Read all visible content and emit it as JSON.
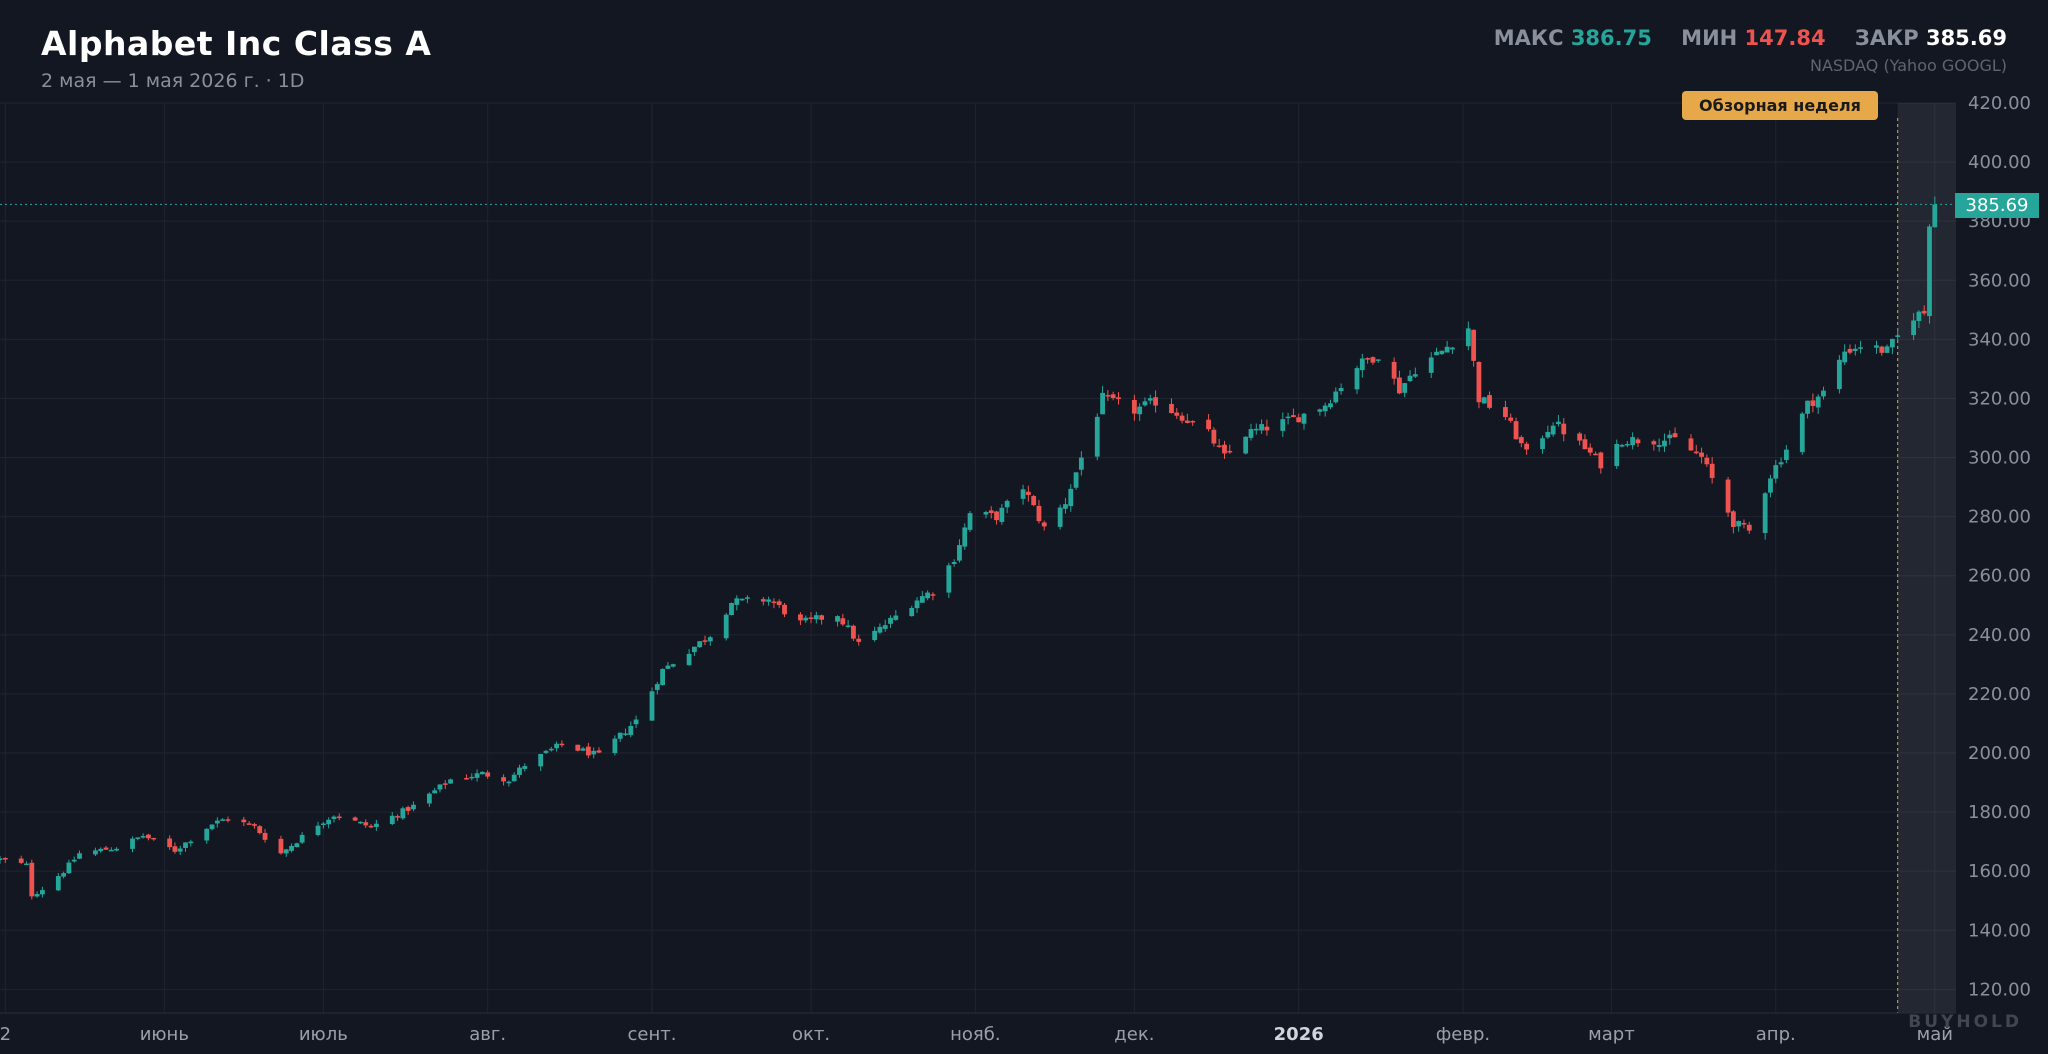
{
  "header": {
    "title": "Alphabet Inc Class A",
    "subtitle": "2 мая — 1 мая 2026 г. · 1D",
    "source": "NASDAQ (Yahoo GOOGL)"
  },
  "stats": {
    "max_label": "МАКС",
    "max_value": "386.75",
    "min_label": "МИН",
    "min_value": "147.84",
    "close_label": "ЗАКР",
    "close_value": "385.69"
  },
  "badge": {
    "label": "Обзорная неделя"
  },
  "last_price_label": "385.69",
  "watermark": "BUYHOLD",
  "colors": {
    "up": "#26a69a",
    "down": "#ef5350",
    "background": "#131722",
    "badge": "#e6a848"
  },
  "chart_data": {
    "type": "candlestick",
    "title": "Alphabet Inc Class A",
    "interval": "1D",
    "ylim": [
      112,
      420
    ],
    "y_ticks": [
      120,
      140,
      160,
      180,
      200,
      220,
      240,
      260,
      280,
      300,
      320,
      340,
      360,
      380,
      400,
      420
    ],
    "y_tick_labels": [
      "120.00",
      "140.00",
      "160.00",
      "180.00",
      "200.00",
      "220.00",
      "240.00",
      "260.00",
      "280.00",
      "300.00",
      "320.00",
      "340.00",
      "360.00",
      "380.00",
      "400.00",
      "420.00"
    ],
    "x_range": [
      "2025-05-01",
      "2026-05-05"
    ],
    "x_ticks": [
      {
        "date": "2025-05-02",
        "label": "2",
        "bold": false
      },
      {
        "date": "2025-06-01",
        "label": "июнь",
        "bold": false
      },
      {
        "date": "2025-07-01",
        "label": "июль",
        "bold": false
      },
      {
        "date": "2025-08-01",
        "label": "авг.",
        "bold": false
      },
      {
        "date": "2025-09-01",
        "label": "сент.",
        "bold": false
      },
      {
        "date": "2025-10-01",
        "label": "окт.",
        "bold": false
      },
      {
        "date": "2025-11-01",
        "label": "нояб.",
        "bold": false
      },
      {
        "date": "2025-12-01",
        "label": "дек.",
        "bold": false
      },
      {
        "date": "2026-01-01",
        "label": "2026",
        "bold": true
      },
      {
        "date": "2026-02-01",
        "label": "февр.",
        "bold": false
      },
      {
        "date": "2026-03-01",
        "label": "март",
        "bold": false
      },
      {
        "date": "2026-04-01",
        "label": "апр.",
        "bold": false
      },
      {
        "date": "2026-05-01",
        "label": "май",
        "bold": false
      }
    ],
    "max": 386.75,
    "min": 147.84,
    "last_close": 385.69,
    "review_week_start": "2026-04-24",
    "close_waypoints": [
      [
        "2025-05-01",
        164
      ],
      [
        "2025-05-06",
        162
      ],
      [
        "2025-05-07",
        152
      ],
      [
        "2025-05-09",
        154
      ],
      [
        "2025-05-13",
        160
      ],
      [
        "2025-05-16",
        166
      ],
      [
        "2025-05-23",
        168
      ],
      [
        "2025-05-28",
        172
      ],
      [
        "2025-06-03",
        167
      ],
      [
        "2025-06-10",
        176
      ],
      [
        "2025-06-13",
        178
      ],
      [
        "2025-06-18",
        175
      ],
      [
        "2025-06-23",
        166
      ],
      [
        "2025-06-30",
        176
      ],
      [
        "2025-07-03",
        179
      ],
      [
        "2025-07-10",
        175
      ],
      [
        "2025-07-18",
        182
      ],
      [
        "2025-07-25",
        191
      ],
      [
        "2025-07-31",
        193
      ],
      [
        "2025-08-05",
        191
      ],
      [
        "2025-08-08",
        196
      ],
      [
        "2025-08-15",
        203
      ],
      [
        "2025-08-22",
        199
      ],
      [
        "2025-08-29",
        211
      ],
      [
        "2025-09-03",
        228
      ],
      [
        "2025-09-12",
        240
      ],
      [
        "2025-09-16",
        251
      ],
      [
        "2025-09-23",
        252
      ],
      [
        "2025-09-29",
        244
      ],
      [
        "2025-10-06",
        247
      ],
      [
        "2025-10-10",
        237
      ],
      [
        "2025-10-14",
        242
      ],
      [
        "2025-10-21",
        252
      ],
      [
        "2025-10-24",
        255
      ],
      [
        "2025-10-28",
        266
      ],
      [
        "2025-10-31",
        281
      ],
      [
        "2025-11-05",
        280
      ],
      [
        "2025-11-10",
        290
      ],
      [
        "2025-11-14",
        276
      ],
      [
        "2025-11-18",
        285
      ],
      [
        "2025-11-21",
        300
      ],
      [
        "2025-11-25",
        320
      ],
      [
        "2025-12-01",
        316
      ],
      [
        "2025-12-05",
        319
      ],
      [
        "2025-12-10",
        314
      ],
      [
        "2025-12-15",
        308
      ],
      [
        "2025-12-18",
        300
      ],
      [
        "2025-12-22",
        308
      ],
      [
        "2025-12-31",
        313
      ],
      [
        "2026-01-06",
        318
      ],
      [
        "2026-01-12",
        331
      ],
      [
        "2026-01-16",
        335
      ],
      [
        "2026-01-20",
        323
      ],
      [
        "2026-01-23",
        330
      ],
      [
        "2026-01-28",
        336
      ],
      [
        "2026-02-02",
        344
      ],
      [
        "2026-02-04",
        320
      ],
      [
        "2026-02-09",
        314
      ],
      [
        "2026-02-13",
        301
      ],
      [
        "2026-02-18",
        312
      ],
      [
        "2026-02-24",
        303
      ],
      [
        "2026-02-27",
        298
      ],
      [
        "2026-03-03",
        306
      ],
      [
        "2026-03-09",
        306
      ],
      [
        "2026-03-13",
        306
      ],
      [
        "2026-03-18",
        300
      ],
      [
        "2026-03-24",
        278
      ],
      [
        "2026-03-27",
        275
      ],
      [
        "2026-03-31",
        294
      ],
      [
        "2026-04-03",
        303
      ],
      [
        "2026-04-07",
        318
      ],
      [
        "2026-04-10",
        322
      ],
      [
        "2026-04-14",
        336
      ],
      [
        "2026-04-17",
        338
      ],
      [
        "2026-04-22",
        336
      ],
      [
        "2026-04-27",
        348
      ],
      [
        "2026-04-29",
        349
      ],
      [
        "2026-04-30",
        380
      ],
      [
        "2026-05-01",
        385.69
      ]
    ]
  }
}
